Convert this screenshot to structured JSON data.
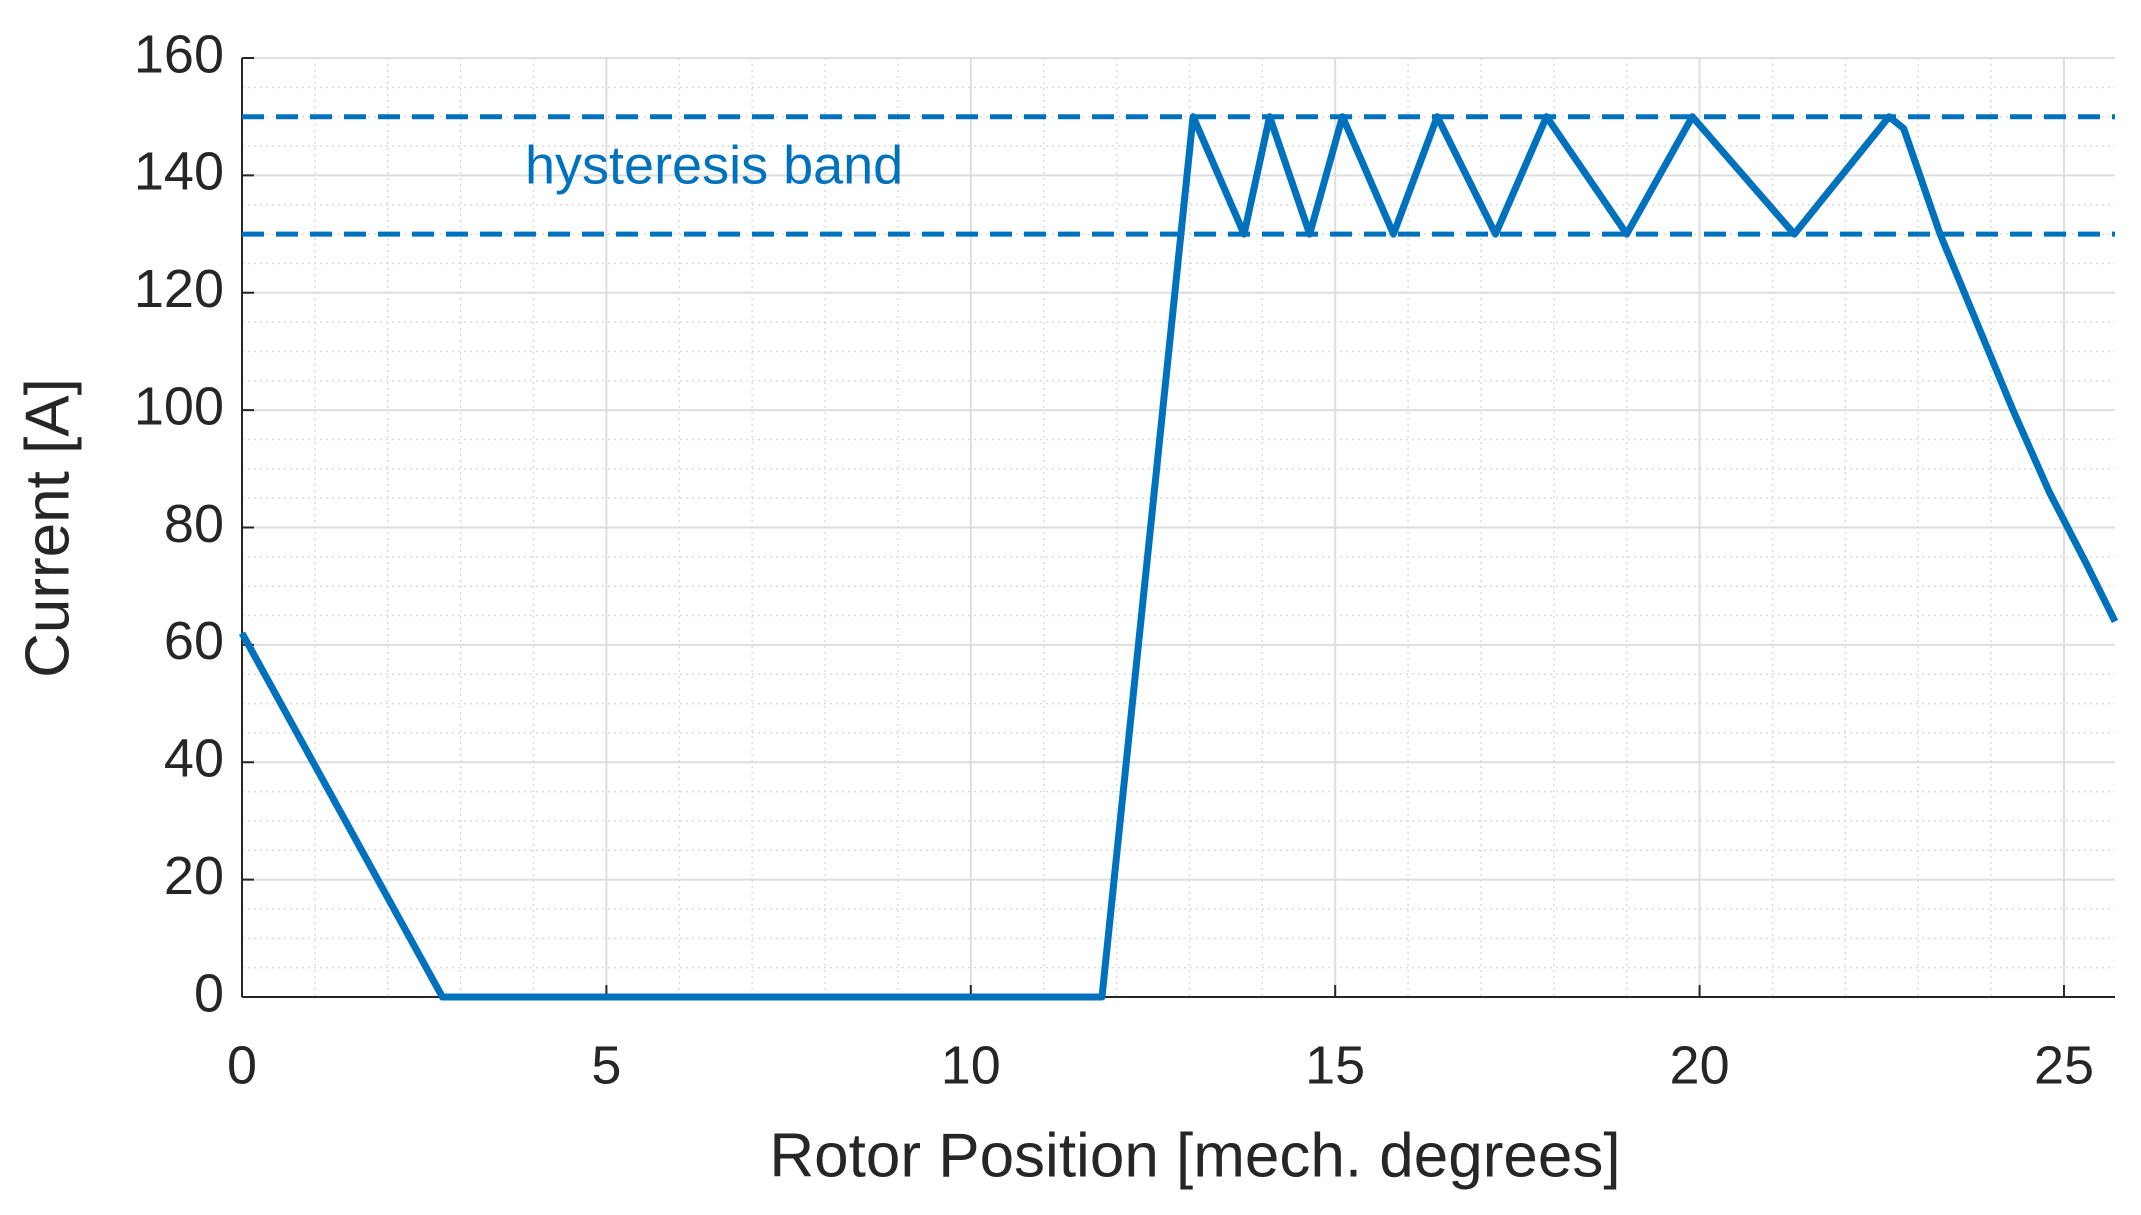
{
  "chart_data": {
    "type": "line",
    "xlabel": "Rotor Position [mech. degrees]",
    "ylabel": "Current [A]",
    "annotation": "hysteresis band",
    "x": [
      0,
      2.75,
      11.8,
      13.05,
      13.75,
      14.1,
      14.65,
      15.1,
      15.8,
      16.4,
      17.2,
      17.9,
      19.0,
      19.9,
      21.3,
      22.6,
      22.8,
      23.3,
      23.8,
      24.3,
      24.8,
      25.3,
      25.7
    ],
    "values": [
      62,
      0,
      0,
      150,
      130,
      150,
      130,
      150,
      130,
      150,
      130,
      150,
      130,
      150,
      130,
      150,
      148,
      130,
      115,
      100,
      86,
      74,
      64
    ],
    "color": "#0072bd",
    "hlines": [
      130,
      150
    ],
    "xlim": [
      0,
      25.7
    ],
    "xticks": [
      0,
      5,
      10,
      15,
      20,
      25
    ],
    "ylim": [
      0,
      160
    ],
    "yticks": [
      0,
      20,
      40,
      60,
      80,
      100,
      120,
      140,
      160
    ],
    "grid": true,
    "minor_grid": true
  }
}
